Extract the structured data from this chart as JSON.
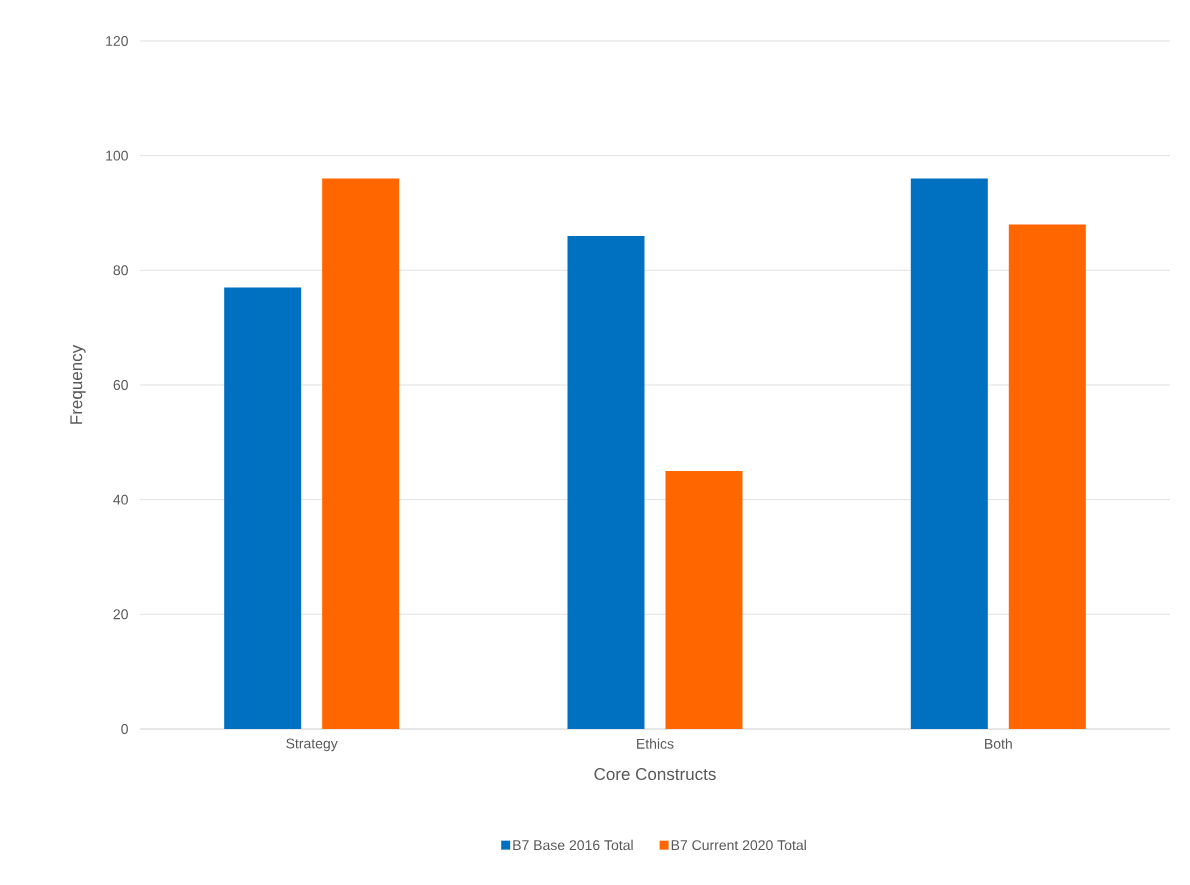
{
  "chart_data": {
    "type": "bar",
    "xlabel": "Core Constructs",
    "ylabel": "Frequency",
    "categories": [
      "Strategy",
      "Ethics",
      "Both"
    ],
    "series": [
      {
        "name": "B7 Base 2016 Total",
        "color": "#0070c0",
        "values": [
          77,
          86,
          96
        ]
      },
      {
        "name": "B7 Current 2020 Total",
        "color": "#ff6600",
        "values": [
          96,
          45,
          88
        ]
      }
    ],
    "ylim": [
      0,
      120
    ],
    "yticks": [
      0,
      20,
      40,
      60,
      80,
      100,
      120
    ],
    "grid": "y",
    "legend": "bottom"
  }
}
